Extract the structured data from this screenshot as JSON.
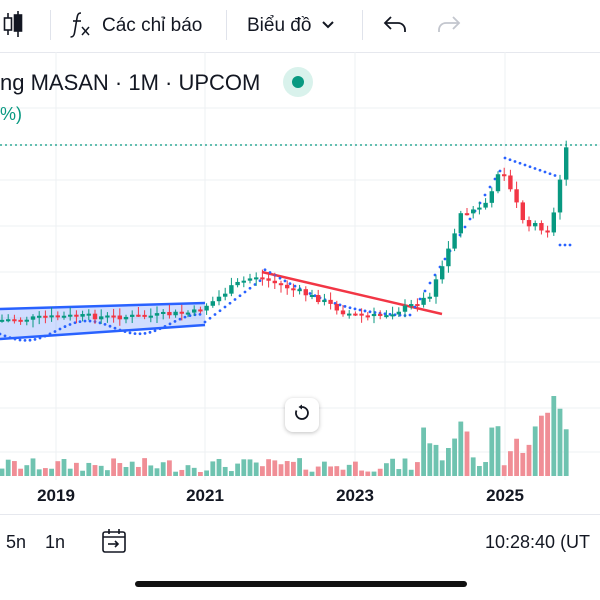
{
  "toolbar": {
    "indicators_label": "Các chỉ báo",
    "chart_type_label": "Biểu đồ",
    "icons": [
      "candles-icon",
      "function-icon",
      "chevron-down-icon",
      "undo-icon",
      "redo-icon"
    ]
  },
  "legend": {
    "title": "ng MASAN · 1M · UPCOM",
    "sub": "%)"
  },
  "colors": {
    "up": "#089981",
    "down": "#f23645",
    "up_volume": "#6fc3b0",
    "down_volume": "#f08e96",
    "sar": "#2962ff",
    "channel": "#2962ff",
    "trendline": "#f23645",
    "last_price_line": "#089981"
  },
  "chart_data": {
    "type": "candlestick",
    "x_ticks": [
      "2019",
      "2021",
      "2023",
      "2025"
    ],
    "interval": "1M",
    "symbol": "MASAN",
    "exchange": "UPCOM"
  },
  "bottom_bar": {
    "range_5n": "5n",
    "range_1n": "1n",
    "clock": "10:28:40 (UT"
  }
}
